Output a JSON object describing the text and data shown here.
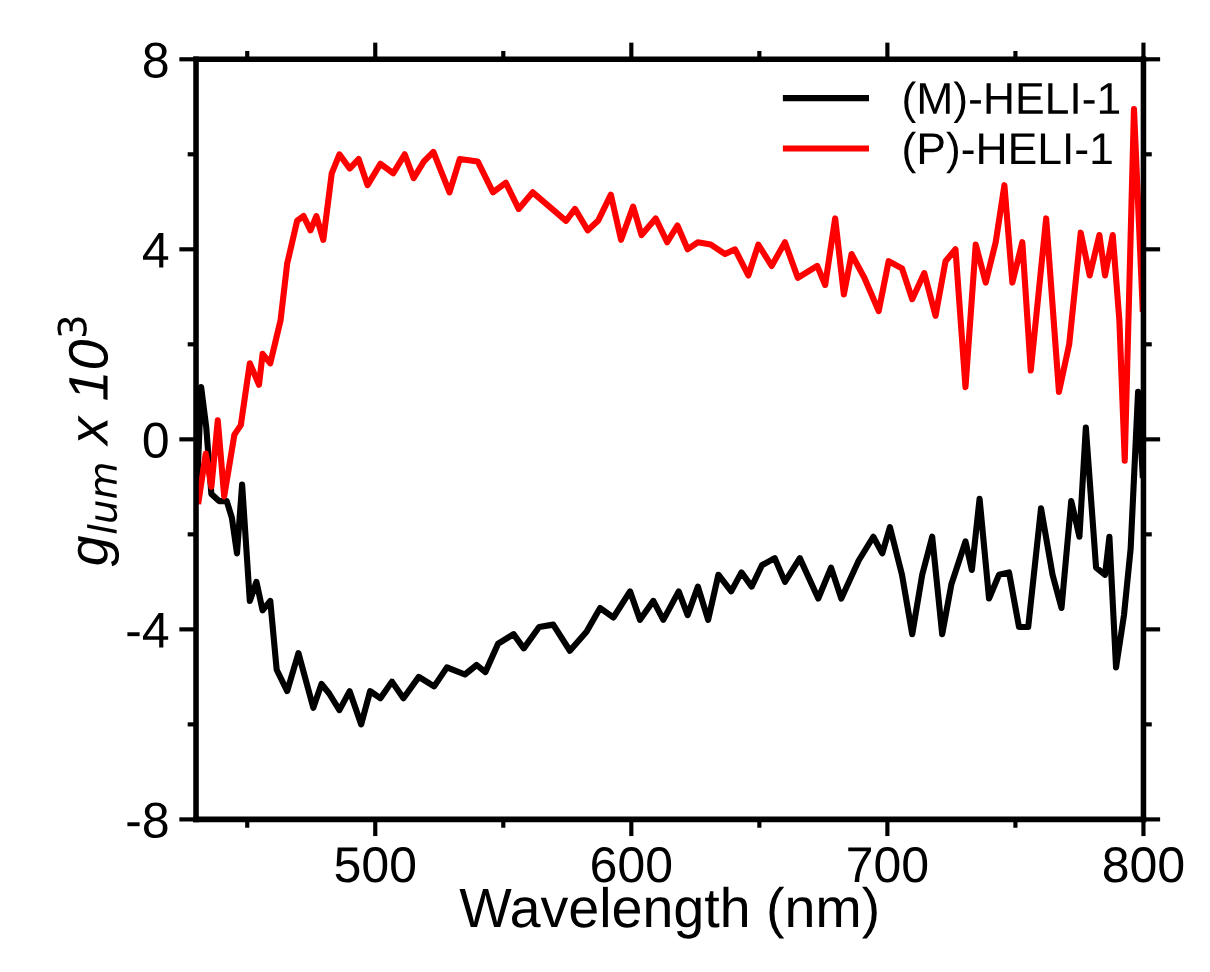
{
  "chart_data": {
    "type": "line",
    "xlabel": "Wavelength (nm)",
    "ylabel": "g$_{lum}$ x 10$^{3}$",
    "xlim": [
      430,
      800
    ],
    "xticks": [
      500,
      600,
      700,
      800
    ],
    "ylim": [
      -8,
      8
    ],
    "yticks": [
      -8,
      -4,
      0,
      4,
      8
    ],
    "grid": false,
    "legend": "top right",
    "line_style": "solid",
    "marker": "none",
    "series": [
      {
        "name": "(M)-HELI-1",
        "color": "#000000",
        "x": [
          430.2,
          432,
          434,
          436,
          439,
          442,
          444,
          446,
          448,
          451,
          453.6,
          456,
          459,
          461.5,
          465.6,
          470,
          475.8,
          479,
          482,
          486,
          490,
          494.5,
          498,
          502,
          506.5,
          511,
          517,
          523,
          528,
          535,
          539.6,
          543,
          548,
          554,
          558,
          564,
          569.5,
          576,
          582.5,
          587.8,
          593,
          599.5,
          603.4,
          608.6,
          612.5,
          618.5,
          622,
          626,
          630,
          634,
          639,
          643,
          647,
          651,
          656,
          660,
          665.8,
          673,
          678,
          682,
          688.8,
          694.5,
          698,
          701,
          705.7,
          709.7,
          713.6,
          717.5,
          721.4,
          725,
          730.5,
          733,
          736,
          739.7,
          743.6,
          747.5,
          751.4,
          755,
          760,
          764.5,
          768,
          771.8,
          775,
          777.5,
          781.5,
          785,
          786.7,
          789.3,
          792.4,
          795,
          797.9,
          799.7
        ],
        "values": [
          -1.3,
          1.1,
          0.25,
          -1.15,
          -1.3,
          -1.3,
          -1.65,
          -2.4,
          -0.95,
          -3.4,
          -3.0,
          -3.6,
          -3.4,
          -4.85,
          -5.3,
          -4.5,
          -5.65,
          -5.15,
          -5.35,
          -5.7,
          -5.3,
          -6.0,
          -5.3,
          -5.45,
          -5.1,
          -5.45,
          -5.0,
          -5.2,
          -4.8,
          -4.95,
          -4.75,
          -4.9,
          -4.3,
          -4.1,
          -4.4,
          -3.95,
          -3.9,
          -4.45,
          -4.05,
          -3.55,
          -3.75,
          -3.2,
          -3.8,
          -3.4,
          -3.8,
          -3.2,
          -3.7,
          -3.1,
          -3.8,
          -2.85,
          -3.2,
          -2.8,
          -3.1,
          -2.65,
          -2.5,
          -3.0,
          -2.5,
          -3.35,
          -2.7,
          -3.35,
          -2.55,
          -2.05,
          -2.4,
          -1.85,
          -2.85,
          -4.1,
          -2.85,
          -2.05,
          -4.1,
          -3.05,
          -2.15,
          -2.75,
          -1.25,
          -3.35,
          -2.85,
          -2.8,
          -3.95,
          -3.95,
          -1.45,
          -2.85,
          -3.55,
          -1.3,
          -2.05,
          0.25,
          -2.7,
          -2.85,
          -2.05,
          -4.8,
          -3.7,
          -2.3,
          1.0,
          -0.75
        ]
      },
      {
        "name": "(P)-HELI-1",
        "color": "#ff0000",
        "x": [
          431,
          433.8,
          436,
          438.5,
          441,
          445,
          447.5,
          451,
          454.6,
          456,
          459,
          463,
          465.6,
          469.5,
          472,
          474.7,
          477,
          479.7,
          483,
          486,
          490,
          493.5,
          497,
          502,
          507,
          511.5,
          515,
          519,
          522.7,
          529,
          533,
          540,
          546,
          551,
          556,
          561.5,
          568,
          574.5,
          578,
          583,
          587,
          592,
          596,
          600.7,
          604,
          609.5,
          614,
          618,
          622,
          626,
          631,
          636.6,
          640.5,
          645.7,
          649.6,
          654.8,
          660,
          665,
          672.6,
          675.7,
          679.6,
          683,
          686,
          691,
          696.6,
          700.5,
          705.7,
          709.7,
          714.4,
          718.8,
          722.7,
          726.6,
          730.5,
          734.5,
          738.4,
          742.3,
          745.7,
          748.8,
          752.7,
          756,
          759,
          762,
          767,
          771,
          775.5,
          779,
          782.8,
          785,
          788,
          790.6,
          792.7,
          796.3,
          799.7
        ],
        "values": [
          -1.3,
          -0.3,
          -1.0,
          0.4,
          -1.2,
          0.1,
          0.3,
          1.6,
          1.15,
          1.8,
          1.6,
          2.5,
          3.7,
          4.6,
          4.7,
          4.4,
          4.7,
          4.2,
          5.6,
          6.0,
          5.7,
          5.9,
          5.35,
          5.8,
          5.6,
          6.0,
          5.5,
          5.85,
          6.05,
          5.2,
          5.9,
          5.85,
          5.2,
          5.4,
          4.85,
          5.2,
          4.9,
          4.6,
          4.85,
          4.4,
          4.6,
          5.15,
          4.2,
          4.9,
          4.3,
          4.65,
          4.15,
          4.5,
          4.0,
          4.15,
          4.1,
          3.9,
          4.0,
          3.45,
          4.1,
          3.65,
          4.15,
          3.4,
          3.65,
          3.25,
          4.65,
          3.05,
          3.9,
          3.4,
          2.7,
          3.75,
          3.6,
          2.95,
          3.5,
          2.6,
          3.75,
          4.0,
          1.1,
          4.1,
          3.3,
          4.15,
          5.35,
          3.3,
          4.15,
          1.45,
          3.05,
          4.65,
          1.0,
          2.0,
          4.35,
          3.45,
          4.3,
          3.45,
          4.3,
          2.5,
          -0.45,
          6.95,
          2.75
        ]
      }
    ]
  }
}
